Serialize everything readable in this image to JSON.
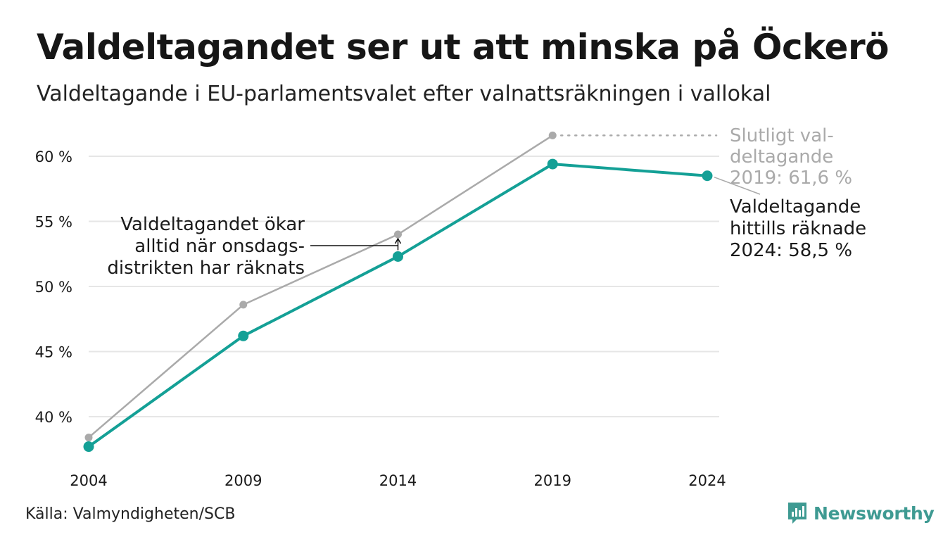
{
  "header": {
    "title": "Valdeltagandet ser ut att minska på Öckerö",
    "subtitle": "Valdeltagande i EU-parlamentsvalet efter valnattsräkningen i vallokal"
  },
  "colors": {
    "preliminary": "#14a096",
    "final": "#aaaaaa",
    "grid": "#e6e6e6",
    "text": "#1a1a1a"
  },
  "chart_data": {
    "type": "line",
    "categories": [
      "2004",
      "2009",
      "2014",
      "2019",
      "2024"
    ],
    "ylim": [
      37,
      62
    ],
    "yticks": [
      40,
      45,
      50,
      55,
      60
    ],
    "ytick_labels": [
      "40 %",
      "45 %",
      "50 %",
      "55 %",
      "60 %"
    ],
    "grid": true,
    "series": [
      {
        "key": "final",
        "values": [
          38.4,
          48.6,
          54.0,
          61.6,
          null
        ]
      },
      {
        "key": "preliminary",
        "values": [
          37.7,
          46.2,
          52.3,
          59.4,
          58.5
        ]
      }
    ],
    "annotations": {
      "final_label": [
        "Slutligt val-",
        "deltagande",
        "2019: 61,6 %"
      ],
      "current_label": [
        "Valdeltagande",
        "hittills räknade",
        "2024: 58,5 %"
      ],
      "note": [
        "Valdeltagandet ökar",
        "alltid när onsdags-",
        "distrikten har räknats"
      ]
    }
  },
  "footer": {
    "source": "Källa: Valmyndigheten/SCB",
    "brand": "Newsworthy"
  }
}
